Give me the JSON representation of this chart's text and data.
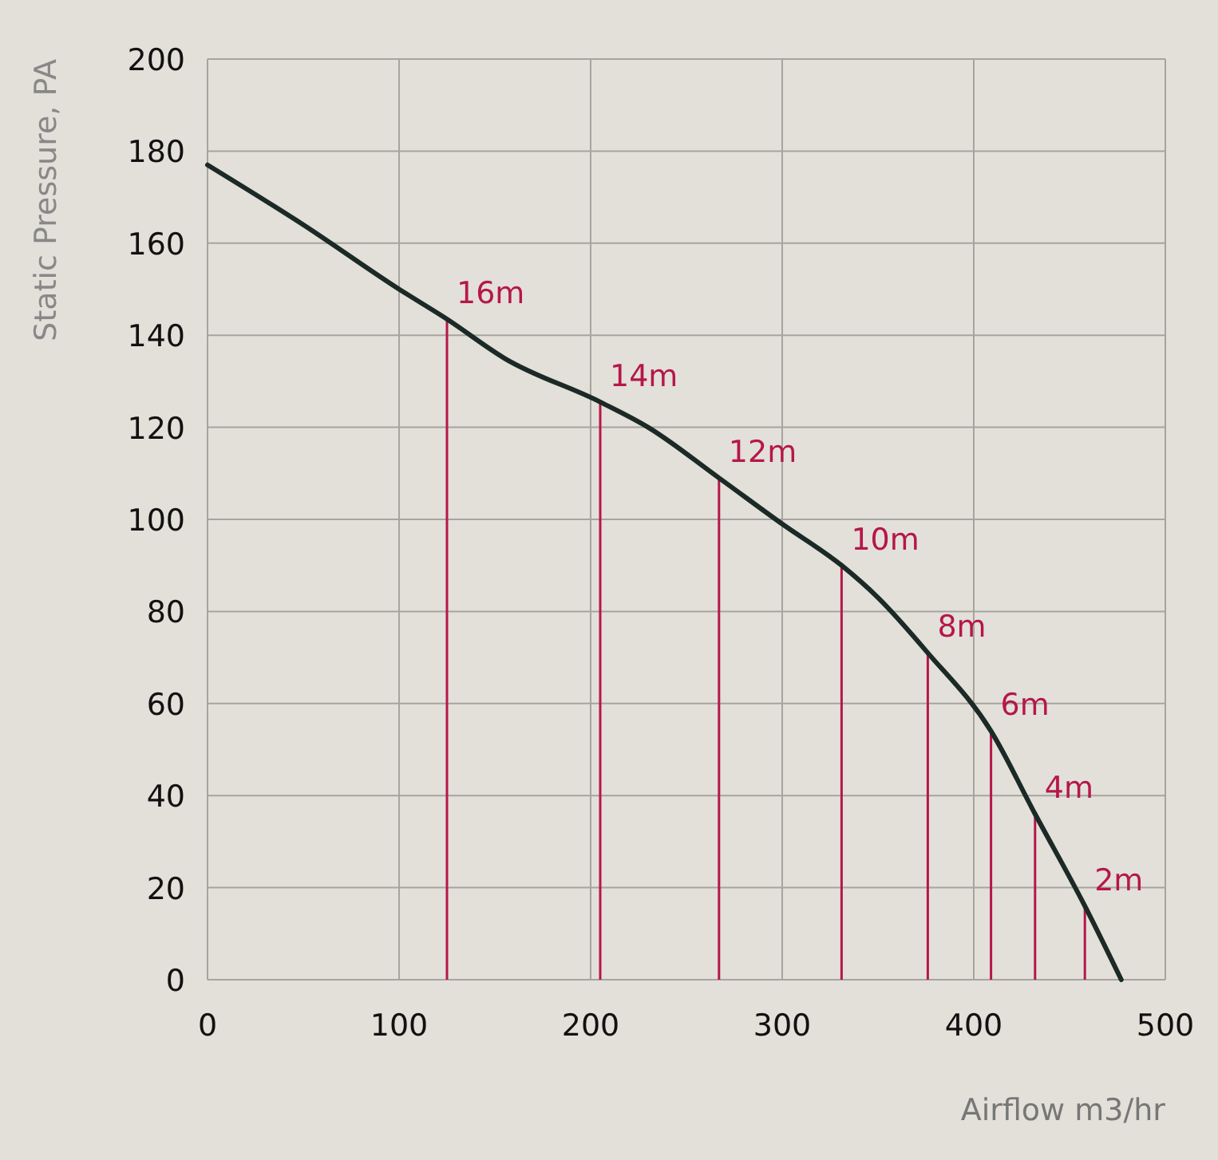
{
  "chart_data": {
    "type": "line",
    "xlabel": "Airflow m3/hr",
    "ylabel": "Static Pressure, PA",
    "xlim": [
      0,
      500
    ],
    "xticks": [
      0,
      100,
      200,
      300,
      400,
      500
    ],
    "ylim": [
      0,
      200
    ],
    "yticks": [
      0,
      20,
      40,
      60,
      80,
      100,
      120,
      140,
      160,
      180,
      200
    ],
    "grid": true,
    "series": [
      {
        "color": "#1b2a26",
        "x": [
          0,
          50,
          100,
          125,
          155,
          205,
          230,
          267,
          300,
          331,
          350,
          376,
          409,
          432,
          458,
          477
        ],
        "values": [
          177,
          164,
          150,
          143.5,
          135,
          125.5,
          120,
          109,
          99,
          90,
          83,
          71,
          54,
          36,
          16,
          0
        ]
      },
      {
        "type": "bar",
        "color": "#b5174a",
        "x": [
          125,
          205,
          267,
          331,
          376,
          409,
          432,
          458
        ],
        "values": [
          143.5,
          125.5,
          109,
          90,
          71,
          54,
          36,
          16
        ]
      }
    ],
    "annotations": [
      {
        "text": "16m",
        "x": 125,
        "y": 143.5
      },
      {
        "text": "14m",
        "x": 205,
        "y": 125.5
      },
      {
        "text": "12m",
        "x": 267,
        "y": 109
      },
      {
        "text": "10m",
        "x": 331,
        "y": 90
      },
      {
        "text": "8m",
        "x": 376,
        "y": 71
      },
      {
        "text": "6m",
        "x": 409,
        "y": 54
      },
      {
        "text": "4m",
        "x": 432,
        "y": 36
      },
      {
        "text": "2m",
        "x": 458,
        "y": 16
      }
    ]
  }
}
